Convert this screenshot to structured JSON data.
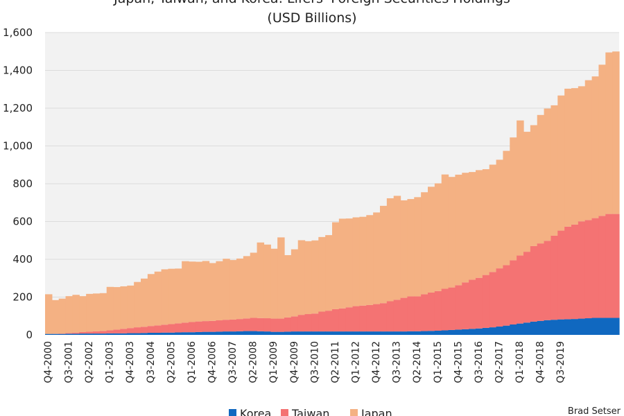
{
  "chart_data": {
    "type": "area",
    "stacked": true,
    "title_line1": "Japan, Taiwan, and Korea: Lifers' Foreign Securities Holdings",
    "title_line2": "(USD Billions)",
    "credit": "Brad Setser",
    "y_ticks": [
      "0",
      "200",
      "400",
      "600",
      "800",
      "1,000",
      "1,200",
      "1,400",
      "1,600"
    ],
    "ylim": [
      0,
      1600
    ],
    "grid": true,
    "legend_position": "bottom-center",
    "x_tick_labels": [
      "Q4-2000",
      "Q3-2001",
      "Q2-2002",
      "Q1-2003",
      "Q4-2003",
      "Q3-2004",
      "Q2-2005",
      "Q1-2006",
      "Q4-2006",
      "Q3-2007",
      "Q2-2008",
      "Q1-2009",
      "Q4-2009",
      "Q3-2010",
      "Q2-2011",
      "Q1-2012",
      "Q4-2012",
      "Q3-2013",
      "Q2-2014",
      "Q1-2015",
      "Q4-2015",
      "Q3-2016",
      "Q2-2017",
      "Q1-2018",
      "Q4-2018",
      "Q3-2019"
    ],
    "x_tick_every": 3,
    "series": [
      {
        "name": "Korea",
        "color": "#1068c0",
        "values": [
          5,
          5,
          5,
          6,
          6,
          7,
          7,
          7,
          7,
          8,
          8,
          8,
          9,
          9,
          10,
          11,
          11,
          12,
          12,
          13,
          14,
          14,
          15,
          16,
          16,
          17,
          18,
          18,
          19,
          20,
          20,
          19,
          18,
          16,
          16,
          17,
          18,
          18,
          18,
          18,
          18,
          18,
          18,
          18,
          18,
          18,
          18,
          18,
          18,
          18,
          18,
          18,
          18,
          19,
          19,
          20,
          21,
          22,
          24,
          26,
          28,
          30,
          32,
          34,
          37,
          40,
          44,
          49,
          55,
          60,
          65,
          70,
          74,
          78,
          80,
          82,
          83,
          84,
          86,
          88,
          90,
          90,
          90,
          90
        ]
      },
      {
        "name": "Taiwan",
        "color": "#f47373",
        "values": [
          0,
          1,
          2,
          4,
          6,
          8,
          10,
          12,
          14,
          16,
          20,
          24,
          27,
          31,
          33,
          36,
          39,
          42,
          45,
          48,
          51,
          54,
          56,
          57,
          58,
          60,
          62,
          63,
          65,
          67,
          70,
          70,
          70,
          70,
          70,
          75,
          80,
          88,
          92,
          95,
          105,
          110,
          118,
          122,
          128,
          134,
          137,
          140,
          145,
          150,
          160,
          168,
          178,
          185,
          185,
          195,
          203,
          210,
          220,
          225,
          235,
          248,
          260,
          268,
          280,
          293,
          308,
          320,
          340,
          360,
          375,
          400,
          410,
          420,
          445,
          470,
          490,
          500,
          515,
          520,
          528,
          540,
          550,
          550
        ]
      },
      {
        "name": "Japan",
        "color": "#f4b183",
        "values": [
          210,
          178,
          185,
          195,
          200,
          190,
          200,
          200,
          200,
          230,
          225,
          225,
          225,
          240,
          255,
          275,
          285,
          293,
          293,
          290,
          325,
          320,
          316,
          318,
          306,
          313,
          323,
          315,
          320,
          330,
          345,
          400,
          390,
          370,
          430,
          330,
          355,
          395,
          386,
          387,
          395,
          400,
          460,
          475,
          470,
          470,
          470,
          476,
          485,
          515,
          545,
          550,
          516,
          515,
          525,
          540,
          560,
          570,
          605,
          585,
          585,
          580,
          570,
          570,
          560,
          568,
          575,
          605,
          650,
          715,
          635,
          640,
          680,
          700,
          690,
          715,
          730,
          722,
          715,
          740,
          750,
          800,
          855,
          860
        ]
      }
    ]
  }
}
